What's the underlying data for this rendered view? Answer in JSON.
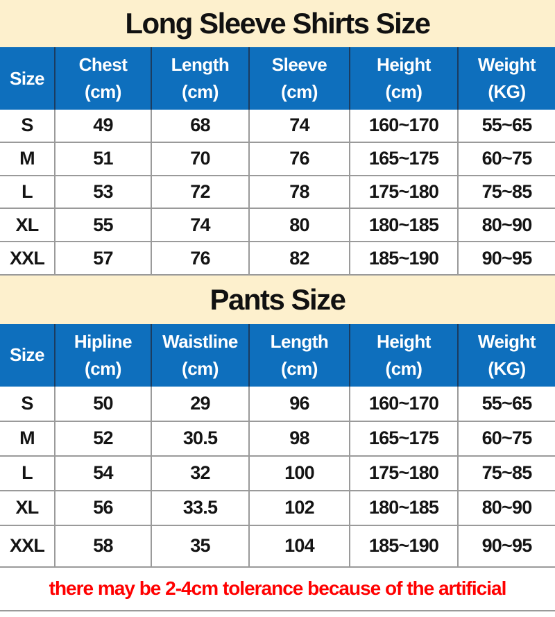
{
  "colors": {
    "banner_bg": "#fdf0cd",
    "header_bg": "#0e6fbd",
    "header_text": "#ffffff",
    "header_divider": "#1b3c60",
    "grid_line": "#9a9a9a",
    "body_text": "#141414",
    "note_text": "#ff0000"
  },
  "shirts_table": {
    "title": "Long Sleeve Shirts Size",
    "headers": [
      {
        "label": "Size",
        "unit": ""
      },
      {
        "label": "Chest",
        "unit": "(cm)"
      },
      {
        "label": "Length",
        "unit": "(cm)"
      },
      {
        "label": "Sleeve",
        "unit": "(cm)"
      },
      {
        "label": "Height",
        "unit": "(cm)"
      },
      {
        "label": "Weight",
        "unit": "(KG)"
      }
    ],
    "rows": [
      {
        "cells": [
          "S",
          "49",
          "68",
          "74",
          "160~170",
          "55~65"
        ]
      },
      {
        "cells": [
          "M",
          "51",
          "70",
          "76",
          "165~175",
          "60~75"
        ]
      },
      {
        "cells": [
          "L",
          "53",
          "72",
          "78",
          "175~180",
          "75~85"
        ]
      },
      {
        "cells": [
          "XL",
          "55",
          "74",
          "80",
          "180~185",
          "80~90"
        ]
      },
      {
        "cells": [
          "XXL",
          "57",
          "76",
          "82",
          "185~190",
          "90~95"
        ]
      }
    ]
  },
  "pants_table": {
    "title": "Pants Size",
    "headers": [
      {
        "label": "Size",
        "unit": ""
      },
      {
        "label": "Hipline",
        "unit": "(cm)"
      },
      {
        "label": "Waistline",
        "unit": "(cm)"
      },
      {
        "label": "Length",
        "unit": "(cm)"
      },
      {
        "label": "Height",
        "unit": "(cm)"
      },
      {
        "label": "Weight",
        "unit": "(KG)"
      }
    ],
    "rows": [
      {
        "cells": [
          "S",
          "50",
          "29",
          "96",
          "160~170",
          "55~65"
        ]
      },
      {
        "cells": [
          "M",
          "52",
          "30.5",
          "98",
          "165~175",
          "60~75"
        ]
      },
      {
        "cells": [
          "L",
          "54",
          "32",
          "100",
          "175~180",
          "75~85"
        ]
      },
      {
        "cells": [
          "XL",
          "56",
          "33.5",
          "102",
          "180~185",
          "80~90"
        ]
      },
      {
        "cells": [
          "XXL",
          "58",
          "35",
          "104",
          "185~190",
          "90~95"
        ]
      }
    ]
  },
  "footer": {
    "note": "there may be 2-4cm tolerance because of the artificial"
  }
}
